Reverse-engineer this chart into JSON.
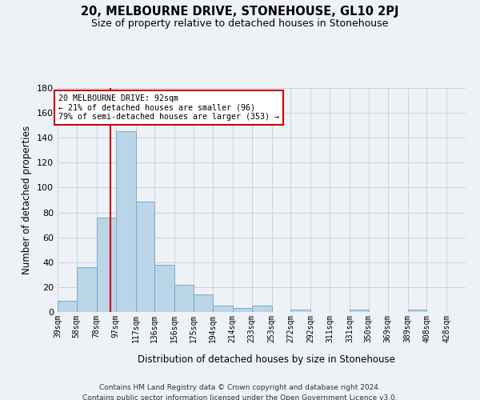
{
  "title": "20, MELBOURNE DRIVE, STONEHOUSE, GL10 2PJ",
  "subtitle": "Size of property relative to detached houses in Stonehouse",
  "xlabel": "Distribution of detached houses by size in Stonehouse",
  "ylabel": "Number of detached properties",
  "footer_line1": "Contains HM Land Registry data © Crown copyright and database right 2024.",
  "footer_line2": "Contains public sector information licensed under the Open Government Licence v3.0.",
  "bar_color": "#bad4e8",
  "bar_edge_color": "#7aaac8",
  "background_color": "#eef2f7",
  "grid_color": "#c8d0da",
  "bins": [
    39,
    58,
    78,
    97,
    117,
    136,
    156,
    175,
    194,
    214,
    233,
    253,
    272,
    292,
    311,
    331,
    350,
    369,
    389,
    408,
    428,
    447
  ],
  "counts": [
    9,
    36,
    76,
    145,
    89,
    38,
    22,
    14,
    5,
    3,
    5,
    0,
    2,
    0,
    0,
    2,
    0,
    0,
    2,
    0,
    0
  ],
  "tick_labels": [
    "39sqm",
    "58sqm",
    "78sqm",
    "97sqm",
    "117sqm",
    "136sqm",
    "156sqm",
    "175sqm",
    "194sqm",
    "214sqm",
    "233sqm",
    "253sqm",
    "272sqm",
    "292sqm",
    "311sqm",
    "331sqm",
    "350sqm",
    "369sqm",
    "389sqm",
    "408sqm",
    "428sqm"
  ],
  "property_size": 92,
  "property_label": "20 MELBOURNE DRIVE: 92sqm",
  "annotation_line2": "← 21% of detached houses are smaller (96)",
  "annotation_line3": "79% of semi-detached houses are larger (353) →",
  "vline_color": "#cc0000",
  "annotation_box_color": "#ffffff",
  "annotation_box_edge": "#cc0000",
  "ylim": [
    0,
    180
  ],
  "yticks": [
    0,
    20,
    40,
    60,
    80,
    100,
    120,
    140,
    160,
    180
  ]
}
